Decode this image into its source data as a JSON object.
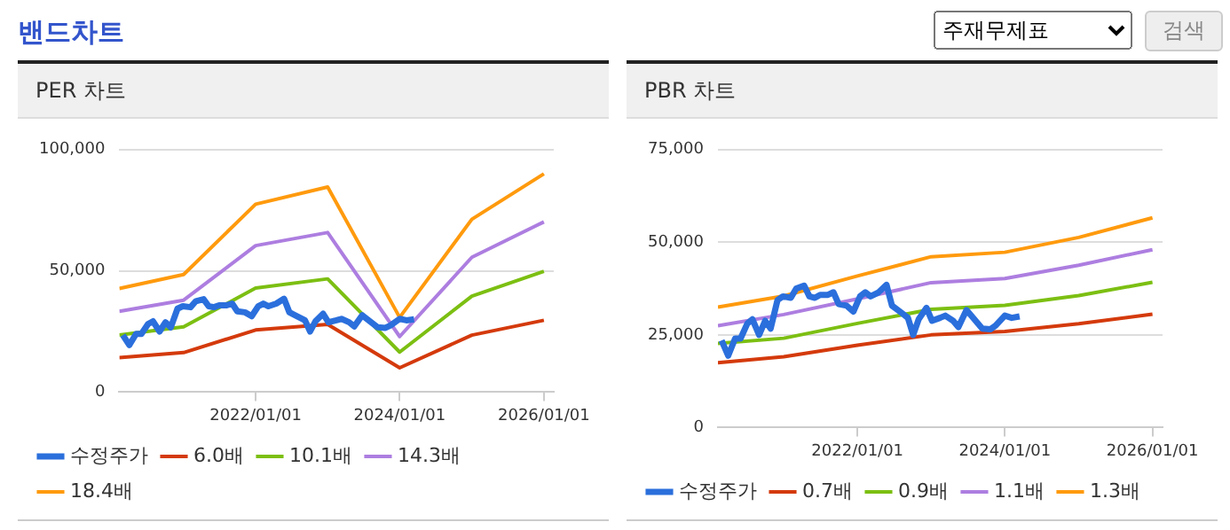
{
  "chart_data": [
    {
      "type": "other",
      "title": "밴드차트",
      "annotations": [
        "주재무제표",
        "검색"
      ]
    },
    {
      "type": "line",
      "title": "PER 차트",
      "legend": "bottom",
      "grid": "y",
      "marker": "none",
      "xlim": [
        "2020-02-10",
        "2026-02-20"
      ],
      "xticks": [
        {
          "value": "2022-01-01",
          "label": "2022/01/01"
        },
        {
          "value": "2024-01-01",
          "label": "2024/01/01"
        },
        {
          "value": "2026-01-01",
          "label": "2026/01/01"
        }
      ],
      "ylim": [
        0,
        100000
      ],
      "yticks": [
        {
          "value": 0,
          "label": "0"
        },
        {
          "value": 50000,
          "label": "50,000"
        },
        {
          "value": 100000,
          "label": "100,000"
        }
      ],
      "series": [
        {
          "name": "수정주가",
          "color": "#2b6fdc",
          "x": [
            "2020-02-28",
            "2020-04-01",
            "2020-05-05",
            "2020-06-01",
            "2020-07-05",
            "2020-07-30",
            "2020-09-01",
            "2020-10-01",
            "2020-10-28",
            "2020-12-01",
            "2020-12-28",
            "2021-02-05",
            "2021-03-04",
            "2021-04-12",
            "2021-05-08",
            "2021-06-04",
            "2021-06-30",
            "2021-08-08",
            "2021-09-04",
            "2021-09-30",
            "2021-11-08",
            "2021-12-12",
            "2022-01-14",
            "2022-02-09",
            "2022-03-07",
            "2022-04-16",
            "2022-05-25",
            "2022-06-21",
            "2022-07-30",
            "2022-09-08",
            "2022-10-04",
            "2022-10-31",
            "2022-12-09",
            "2023-01-05",
            "2023-02-14",
            "2023-03-12",
            "2023-04-20",
            "2023-05-16",
            "2023-06-25",
            "2023-08-03",
            "2023-09-11",
            "2023-10-21",
            "2023-11-16",
            "2024-01-01",
            "2024-02-04",
            "2024-03-14"
          ],
          "values": [
            23500,
            19400,
            24000,
            24000,
            28100,
            29200,
            25000,
            28800,
            26700,
            34400,
            35400,
            35000,
            37500,
            38300,
            35400,
            35000,
            35800,
            35800,
            36500,
            33300,
            32900,
            31300,
            35400,
            36500,
            35400,
            36500,
            38500,
            32900,
            31300,
            29600,
            25000,
            29200,
            32300,
            28800,
            29600,
            30200,
            28800,
            27100,
            31700,
            29200,
            26700,
            26500,
            27500,
            30200,
            29600,
            30000
          ]
        },
        {
          "name": "6.0배",
          "color": "#d43a0c",
          "x": [
            "2020-02-10",
            "2021-01-01",
            "2022-01-01",
            "2023-01-01",
            "2024-01-01",
            "2025-01-01",
            "2026-01-01"
          ],
          "values": [
            14200,
            16300,
            25600,
            27900,
            10000,
            23500,
            29600
          ]
        },
        {
          "name": "10.1배",
          "color": "#7cbf12",
          "x": [
            "2020-02-10",
            "2021-01-01",
            "2022-01-01",
            "2023-01-01",
            "2024-01-01",
            "2025-01-01",
            "2026-01-01"
          ],
          "values": [
            23500,
            26900,
            42900,
            46700,
            16500,
            39600,
            49800
          ]
        },
        {
          "name": "14.3배",
          "color": "#ad7ee0",
          "x": [
            "2020-02-10",
            "2021-01-01",
            "2022-01-01",
            "2023-01-01",
            "2024-01-01",
            "2025-01-01",
            "2026-01-01"
          ],
          "values": [
            33300,
            37900,
            60400,
            65800,
            22900,
            55600,
            70200
          ]
        },
        {
          "name": "18.4배",
          "color": "#ff9a0d",
          "x": [
            "2020-02-10",
            "2021-01-01",
            "2022-01-01",
            "2023-01-01",
            "2024-01-01",
            "2025-01-01",
            "2026-01-01"
          ],
          "values": [
            42700,
            48500,
            77500,
            84600,
            30800,
            71300,
            90000
          ]
        }
      ]
    },
    {
      "type": "line",
      "title": "PBR 차트",
      "legend": "bottom",
      "grid": "y",
      "marker": "none",
      "xlim": [
        "2020-02-10",
        "2026-02-20"
      ],
      "xticks": [
        {
          "value": "2022-01-01",
          "label": "2022/01/01"
        },
        {
          "value": "2024-01-01",
          "label": "2024/01/01"
        },
        {
          "value": "2026-01-01",
          "label": "2026/01/01"
        }
      ],
      "ylim": [
        0,
        75000
      ],
      "yticks": [
        {
          "value": 0,
          "label": "0"
        },
        {
          "value": 25000,
          "label": "25,000"
        },
        {
          "value": 50000,
          "label": "50,000"
        },
        {
          "value": 75000,
          "label": "75,000"
        }
      ],
      "series": [
        {
          "name": "수정주가",
          "color": "#2b6fdc",
          "x": [
            "2020-02-28",
            "2020-04-01",
            "2020-05-05",
            "2020-06-01",
            "2020-07-05",
            "2020-07-30",
            "2020-09-01",
            "2020-10-01",
            "2020-10-28",
            "2020-12-01",
            "2020-12-28",
            "2021-02-05",
            "2021-03-04",
            "2021-04-12",
            "2021-05-08",
            "2021-06-04",
            "2021-06-30",
            "2021-08-08",
            "2021-09-04",
            "2021-09-30",
            "2021-11-08",
            "2021-12-12",
            "2022-01-14",
            "2022-02-09",
            "2022-03-07",
            "2022-04-16",
            "2022-05-25",
            "2022-06-21",
            "2022-07-30",
            "2022-09-08",
            "2022-10-04",
            "2022-10-31",
            "2022-12-09",
            "2023-01-05",
            "2023-02-14",
            "2023-03-12",
            "2023-04-20",
            "2023-05-16",
            "2023-06-25",
            "2023-08-03",
            "2023-09-11",
            "2023-10-21",
            "2023-11-16",
            "2024-01-01",
            "2024-02-04",
            "2024-03-14"
          ],
          "values": [
            23500,
            19400,
            24000,
            24000,
            28100,
            29200,
            25000,
            28800,
            26700,
            34400,
            35400,
            35000,
            37500,
            38300,
            35400,
            35000,
            35800,
            35800,
            36500,
            33300,
            32900,
            31300,
            35400,
            36500,
            35400,
            36500,
            38500,
            32900,
            31300,
            29600,
            25000,
            29200,
            32300,
            28800,
            29600,
            30200,
            28800,
            27100,
            31700,
            29200,
            26700,
            26500,
            27500,
            30200,
            29600,
            30000
          ]
        },
        {
          "name": "0.7배",
          "color": "#d43a0c",
          "x": [
            "2020-02-10",
            "2021-01-01",
            "2022-01-01",
            "2023-01-01",
            "2024-01-01",
            "2025-01-01",
            "2026-01-01"
          ],
          "values": [
            17500,
            19100,
            22200,
            25000,
            25900,
            28000,
            30600
          ]
        },
        {
          "name": "0.9배",
          "color": "#7cbf12",
          "x": [
            "2020-02-10",
            "2021-01-01",
            "2022-01-01",
            "2023-01-01",
            "2024-01-01",
            "2025-01-01",
            "2026-01-01"
          ],
          "values": [
            22700,
            24100,
            28100,
            31900,
            33000,
            35600,
            39200
          ]
        },
        {
          "name": "1.1배",
          "color": "#ad7ee0",
          "x": [
            "2020-02-10",
            "2021-01-01",
            "2022-01-01",
            "2023-01-01",
            "2024-01-01",
            "2025-01-01",
            "2026-01-01"
          ],
          "values": [
            27500,
            30500,
            34700,
            39100,
            40200,
            43800,
            48000
          ]
        },
        {
          "name": "1.3배",
          "color": "#ff9a0d",
          "x": [
            "2020-02-10",
            "2021-01-01",
            "2022-01-01",
            "2023-01-01",
            "2024-01-01",
            "2025-01-01",
            "2026-01-01"
          ],
          "values": [
            32500,
            35500,
            40900,
            46100,
            47300,
            51300,
            56600
          ]
        }
      ]
    }
  ]
}
